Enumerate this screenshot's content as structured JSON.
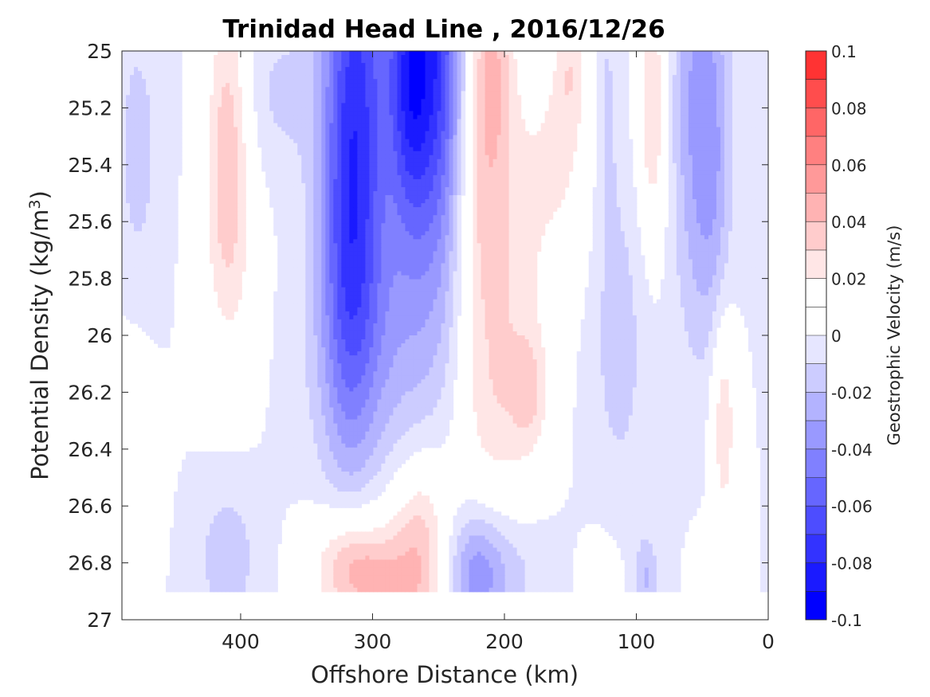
{
  "chart_data": {
    "type": "contour",
    "title": "Trinidad Head Line , 2016/12/26",
    "xlabel": "Offshore Distance (km)",
    "ylabel": "Potential Density (kg/m",
    "ylabel_sup": "3",
    "ylabel_close": ")",
    "xlim": [
      490,
      0
    ],
    "ylim": [
      25,
      27
    ],
    "x_reversed": true,
    "y_reversed": true,
    "xticks": [
      400,
      300,
      200,
      100,
      0
    ],
    "yticks": [
      25,
      25.2,
      25.4,
      25.6,
      25.8,
      26,
      26.2,
      26.4,
      26.6,
      26.8,
      27
    ],
    "colorbar": {
      "label": "Geostrophic Velocity (m/s)",
      "range": [
        -0.1,
        0.1
      ],
      "levels": [
        -0.1,
        -0.09,
        -0.08,
        -0.07,
        -0.06,
        -0.05,
        -0.04,
        -0.03,
        -0.02,
        -0.01,
        0,
        0.01,
        0.02,
        0.03,
        0.04,
        0.05,
        0.06,
        0.07,
        0.08,
        0.09,
        0.1
      ],
      "ticks": [
        0.1,
        0.08,
        0.06,
        0.04,
        0.02,
        0,
        -0.02,
        -0.04,
        -0.06,
        -0.08,
        -0.1
      ],
      "tick_labels": [
        "0.1",
        "0.08",
        "0.06",
        "0.04",
        "0.02",
        "0",
        "-0.02",
        "-0.04",
        "-0.06",
        "-0.08",
        "-0.1"
      ],
      "colors": [
        "#0000ff",
        "#1a1aff",
        "#3333ff",
        "#4d4dff",
        "#6666ff",
        "#8080ff",
        "#9999ff",
        "#b3b3ff",
        "#ccccff",
        "#e6e6ff",
        "#ffffff",
        "#ffffff",
        "#ffe6e6",
        "#ffcccc",
        "#ffb3b3",
        "#ff9999",
        "#ff8080",
        "#ff6666",
        "#ff4d4d",
        "#ff3333",
        "#ff0000"
      ]
    },
    "features": [
      {
        "x": 250,
        "y": 25.0,
        "sx": 26,
        "sy": 0.55,
        "v": -0.085
      },
      {
        "x": 272,
        "y": 25.15,
        "sx": 10,
        "sy": 0.3,
        "v": -0.03
      },
      {
        "x": 314,
        "y": 25.2,
        "sx": 17,
        "sy": 0.65,
        "v": -0.065
      },
      {
        "x": 293,
        "y": 26.0,
        "sx": 38,
        "sy": 0.35,
        "v": -0.02
      },
      {
        "x": 320,
        "y": 25.85,
        "sx": 14,
        "sy": 0.5,
        "v": -0.02
      },
      {
        "x": 222,
        "y": 25.05,
        "sx": 15,
        "sy": 0.6,
        "v": 0.062
      },
      {
        "x": 200,
        "y": 25.9,
        "sx": 22,
        "sy": 0.5,
        "v": 0.025
      },
      {
        "x": 180,
        "y": 26.2,
        "sx": 10,
        "sy": 0.15,
        "v": 0.02
      },
      {
        "x": 170,
        "y": 25.35,
        "sx": 22,
        "sy": 0.35,
        "v": 0.012
      },
      {
        "x": 410,
        "y": 25.3,
        "sx": 12,
        "sy": 0.4,
        "v": 0.035
      },
      {
        "x": 408,
        "y": 25.8,
        "sx": 18,
        "sy": 0.3,
        "v": 0.012
      },
      {
        "x": 478,
        "y": 25.35,
        "sx": 14,
        "sy": 0.4,
        "v": -0.013
      },
      {
        "x": 485,
        "y": 26.4,
        "sx": 13,
        "sy": 0.25,
        "v": 0.02
      },
      {
        "x": 370,
        "y": 25.15,
        "sx": 22,
        "sy": 0.2,
        "v": -0.012
      },
      {
        "x": 113,
        "y": 26.0,
        "sx": 17,
        "sy": 0.45,
        "v": -0.014
      },
      {
        "x": 123,
        "y": 25.15,
        "sx": 7,
        "sy": 0.35,
        "v": -0.012
      },
      {
        "x": 88,
        "y": 25.2,
        "sx": 8,
        "sy": 0.35,
        "v": 0.032
      },
      {
        "x": 52,
        "y": 25.2,
        "sx": 14,
        "sy": 0.55,
        "v": -0.034
      },
      {
        "x": 40,
        "y": 25.5,
        "sx": 9,
        "sy": 0.4,
        "v": -0.012
      },
      {
        "x": 150,
        "y": 25.3,
        "sx": 15,
        "sy": 0.35,
        "v": 0.012
      },
      {
        "x": 34,
        "y": 26.3,
        "sx": 7,
        "sy": 0.28,
        "v": 0.03
      },
      {
        "x": 205,
        "y": 25.05,
        "sx": 10,
        "sy": 0.25,
        "v": 0.02
      },
      {
        "x": 150,
        "y": 25.05,
        "sx": 7,
        "sy": 0.15,
        "v": 0.015
      },
      {
        "x": 210,
        "y": 26.3,
        "sx": 20,
        "sy": 0.2,
        "v": 0.008
      },
      {
        "x": 318,
        "y": 26.82,
        "sx": 20,
        "sy": 0.15,
        "v": 0.04
      },
      {
        "x": 270,
        "y": 26.9,
        "sx": 20,
        "sy": 0.25,
        "v": 0.034
      },
      {
        "x": 262,
        "y": 26.65,
        "sx": 13,
        "sy": 0.18,
        "v": 0.015
      },
      {
        "x": 298,
        "y": 26.85,
        "sx": 16,
        "sy": 0.1,
        "v": 0.012
      },
      {
        "x": 222,
        "y": 26.85,
        "sx": 15,
        "sy": 0.16,
        "v": -0.03
      },
      {
        "x": 200,
        "y": 26.82,
        "sx": 26,
        "sy": 0.14,
        "v": -0.015
      },
      {
        "x": 410,
        "y": 26.78,
        "sx": 16,
        "sy": 0.18,
        "v": -0.017
      },
      {
        "x": 92,
        "y": 26.85,
        "sx": 6,
        "sy": 0.1,
        "v": -0.02
      },
      {
        "x": 128,
        "y": 26.85,
        "sx": 10,
        "sy": 0.1,
        "v": 0.017
      },
      {
        "x": 50,
        "y": 26.85,
        "sx": 6,
        "sy": 0.1,
        "v": 0.02
      }
    ],
    "data_rows_max_density": 26.9
  }
}
